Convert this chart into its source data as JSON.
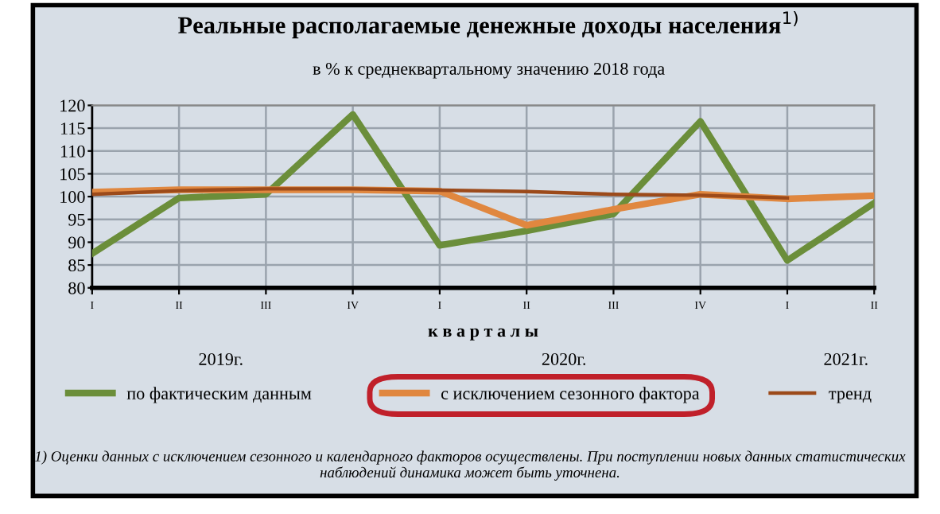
{
  "chart_data": {
    "type": "line",
    "title": "Реальные располагаемые денежные доходы населения$^{1)}$",
    "subtitle": "в % к среднеквартальному значению 2018 года",
    "xlabel": "к в а р т а л ы",
    "categories": [
      "I",
      "II",
      "III",
      "IV",
      "I",
      "II",
      "III",
      "IV",
      "I",
      "II"
    ],
    "series": [
      {
        "name": "по фактическим данным",
        "color": "#6b8e3a",
        "values": [
          87.5,
          99.7,
          100.5,
          118,
          89.3,
          92.5,
          96.2,
          116.5,
          86,
          98.6
        ]
      },
      {
        "name": "с исключением сезонного фактора",
        "color": "#e0873f",
        "values": [
          101,
          101.5,
          101.5,
          101.5,
          101.2,
          93.7,
          97.2,
          100.5,
          99.5,
          100.2
        ]
      },
      {
        "name": "тренд",
        "color": "#9c4a1a",
        "values": [
          100.5,
          101.3,
          101.7,
          101.7,
          101.4,
          101.1,
          100.5,
          100.3,
          99.7,
          null
        ]
      }
    ],
    "ylim": [
      80,
      120
    ],
    "yticks": [
      80,
      85,
      90,
      95,
      100,
      105,
      110,
      115,
      120
    ],
    "grid": true,
    "legend": "bottom",
    "line_style": "solid",
    "marker": "none",
    "annotations": [
      "2019г.",
      "2020г.",
      "2021г.",
      "1) Оценки данных с исключением сезонного и календарного факторов осуществлены. При поступлении новых данных статистических наблюдений динамика может быть уточнена."
    ]
  }
}
